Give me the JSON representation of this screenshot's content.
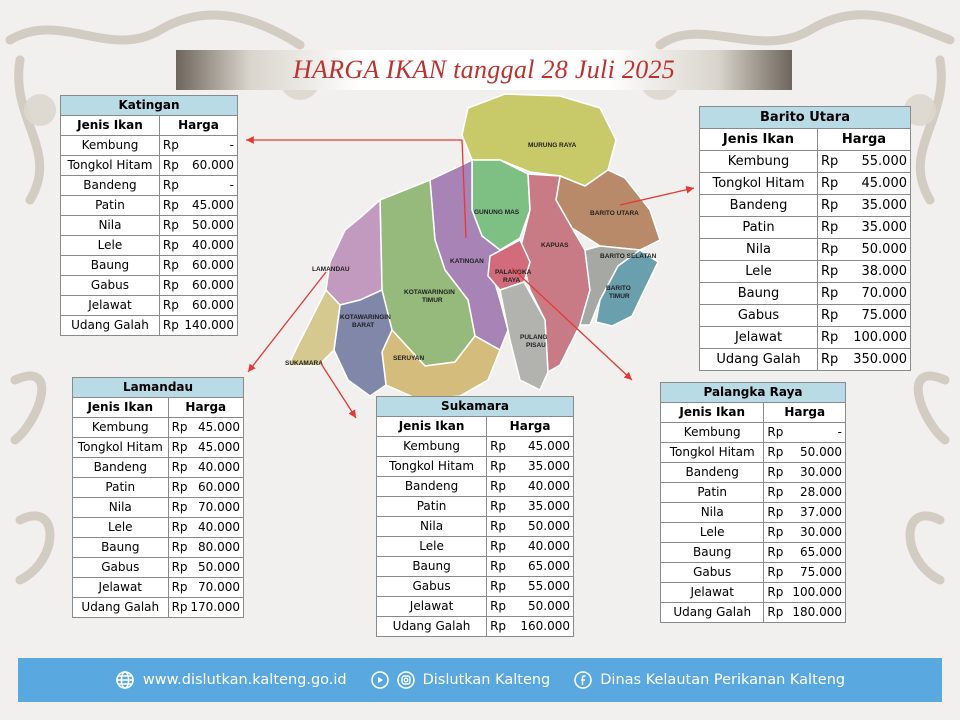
{
  "title": "HARGA IKAN  tanggal  28 Juli 2025",
  "columns": {
    "fish": "Jenis Ikan",
    "price": "Harga"
  },
  "map_labels": {
    "murung_raya": "MURUNG RAYA",
    "gunung_mas": "GUNUNG MAS",
    "barito_utara": "BARITO UTARA",
    "kapuas": "KAPUAS",
    "barito_selatan": "BARITO SELATAN",
    "barito_timur": [
      "BARITO",
      "TIMUR"
    ],
    "katingan": "KATINGAN",
    "palangka_raya": [
      "PALANGKA",
      "RAYA"
    ],
    "lamandau": "LAMANDAU",
    "kotawaringin_timur": [
      "KOTAWARINGIN",
      "TIMUR"
    ],
    "kotawaringin_barat": [
      "KOTAWARINGIN",
      "BARAT"
    ],
    "seruyan": "SERUYAN",
    "pulang_pisau": [
      "PULANG",
      "PISAU"
    ],
    "sukamara": "SUKAMARA"
  },
  "tables": [
    {
      "region": "Katingan",
      "rows": [
        [
          "Kembung",
          "Rp",
          "-"
        ],
        [
          "Tongkol Hitam",
          "Rp",
          "60.000"
        ],
        [
          "Bandeng",
          "Rp",
          "-"
        ],
        [
          "Patin",
          "Rp",
          "45.000"
        ],
        [
          "Nila",
          "Rp",
          "50.000"
        ],
        [
          "Lele",
          "Rp",
          "40.000"
        ],
        [
          "Baung",
          "Rp",
          "60.000"
        ],
        [
          "Gabus",
          "Rp",
          "60.000"
        ],
        [
          "Jelawat",
          "Rp",
          "60.000"
        ],
        [
          "Udang Galah",
          "Rp",
          "140.000"
        ]
      ]
    },
    {
      "region": "Barito Utara",
      "rows": [
        [
          "Kembung",
          "Rp",
          "55.000"
        ],
        [
          "Tongkol Hitam",
          "Rp",
          "45.000"
        ],
        [
          "Bandeng",
          "Rp",
          "35.000"
        ],
        [
          "Patin",
          "Rp",
          "35.000"
        ],
        [
          "Nila",
          "Rp",
          "50.000"
        ],
        [
          "Lele",
          "Rp",
          "38.000"
        ],
        [
          "Baung",
          "Rp",
          "70.000"
        ],
        [
          "Gabus",
          "Rp",
          "75.000"
        ],
        [
          "Jelawat",
          "Rp",
          "100.000"
        ],
        [
          "Udang Galah",
          "Rp",
          "350.000"
        ]
      ]
    },
    {
      "region": "Lamandau",
      "rows": [
        [
          "Kembung",
          "Rp",
          "45.000"
        ],
        [
          "Tongkol Hitam",
          "Rp",
          "45.000"
        ],
        [
          "Bandeng",
          "Rp",
          "40.000"
        ],
        [
          "Patin",
          "Rp",
          "60.000"
        ],
        [
          "Nila",
          "Rp",
          "70.000"
        ],
        [
          "Lele",
          "Rp",
          "40.000"
        ],
        [
          "Baung",
          "Rp",
          "80.000"
        ],
        [
          "Gabus",
          "Rp",
          "50.000"
        ],
        [
          "Jelawat",
          "Rp",
          "70.000"
        ],
        [
          "Udang Galah",
          "Rp",
          "170.000"
        ]
      ]
    },
    {
      "region": "Sukamara",
      "rows": [
        [
          "Kembung",
          "Rp",
          "45.000"
        ],
        [
          "Tongkol Hitam",
          "Rp",
          "35.000"
        ],
        [
          "Bandeng",
          "Rp",
          "40.000"
        ],
        [
          "Patin",
          "Rp",
          "35.000"
        ],
        [
          "Nila",
          "Rp",
          "50.000"
        ],
        [
          "Lele",
          "Rp",
          "40.000"
        ],
        [
          "Baung",
          "Rp",
          "65.000"
        ],
        [
          "Gabus",
          "Rp",
          "55.000"
        ],
        [
          "Jelawat",
          "Rp",
          "50.000"
        ],
        [
          "Udang Galah",
          "Rp",
          "160.000"
        ]
      ]
    },
    {
      "region": "Palangka Raya",
      "rows": [
        [
          "Kembung",
          "Rp",
          "-"
        ],
        [
          "Tongkol Hitam",
          "Rp",
          "50.000"
        ],
        [
          "Bandeng",
          "Rp",
          "30.000"
        ],
        [
          "Patin",
          "Rp",
          "28.000"
        ],
        [
          "Nila",
          "Rp",
          "37.000"
        ],
        [
          "Lele",
          "Rp",
          "30.000"
        ],
        [
          "Baung",
          "Rp",
          "65.000"
        ],
        [
          "Gabus",
          "Rp",
          "75.000"
        ],
        [
          "Jelawat",
          "Rp",
          "100.000"
        ],
        [
          "Udang Galah",
          "Rp",
          "180.000"
        ]
      ]
    }
  ],
  "footer": {
    "website": "www.dislutkan.kalteng.go.id",
    "social": "Dislutkan Kalteng",
    "facebook": "Dinas Kelautan Perikanan Kalteng",
    "icons": [
      "globe-icon",
      "youtube-icon",
      "instagram-icon",
      "facebook-icon"
    ]
  },
  "colors": {
    "title": "#c0312e",
    "table_header": "#b8dbe6",
    "footer": "#5aa8e0",
    "arrow": "#e53935"
  }
}
